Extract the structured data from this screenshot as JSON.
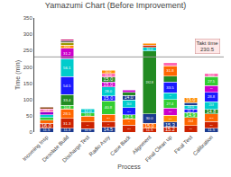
{
  "chart_data": {
    "type": "bar",
    "stacked": true,
    "title": "Yamazumi Chart (Before Improvement)",
    "xlabel": "Process",
    "ylabel": "Time (min)",
    "categories": [
      "Incoming Insp",
      "Desolate Build",
      "Discharge Test",
      "Radio Assy",
      "Case Back",
      "Alignment",
      "Final Clean up",
      "Final Test",
      "Calibration"
    ],
    "series": [
      {
        "values": [
          11.5,
          11.3,
          11.0,
          14.5,
          21.5,
          11.5,
          15.25,
          20.5,
          11.5
        ],
        "colors": [
          "#1a3a8f",
          "#1a3a8f",
          "#1a3a8f",
          "#1a3a8f",
          "#cc2200",
          "#cc2200",
          "#cc2200",
          "#cc2200",
          "#1a3a8f"
        ],
        "value_labels": [
          "11.5",
          "11.3",
          "11.0",
          "14.5",
          "21.5",
          "11.5",
          "15.2",
          "20.5",
          "11.5"
        ]
      },
      {
        "values": [
          15.99,
          31.3,
          20.0,
          18.5,
          18.5,
          15.0,
          15.33,
          24.42,
          20.82
        ],
        "colors": [
          "#cc2200",
          "#cc2200",
          "#cc2200",
          "#cc2200",
          "#ff6600",
          "#ff6600",
          "#1a3a8f",
          "#ff6600",
          "#cc2200"
        ],
        "value_labels": [
          "16.0",
          "31.3",
          "20.0",
          "18.5",
          "18.5",
          "15.0",
          "15.3",
          "24.4",
          "20.8"
        ]
      },
      {
        "values": [
          9.5,
          28.5,
          18.0,
          22.0,
          12.5,
          30.0,
          21.25,
          14.86,
          22.82
        ],
        "colors": [
          "#ff6600",
          "#ff6600",
          "#ff6600",
          "#ff6600",
          "#32cd32",
          "#1a3a8f",
          "#ff8c00",
          "#32cd32",
          "#ff6600"
        ],
        "value_labels": [
          null,
          "28.5",
          "18.0",
          "22.0",
          "12.5",
          "30.0",
          "21.2",
          "14.9",
          "22.8"
        ]
      },
      {
        "values": [
          7.5,
          10.8,
          10.0,
          40.75,
          22.0,
          192.8,
          21.23,
          11.66,
          14.81
        ],
        "colors": [
          "#32cd32",
          "#32cd32",
          "#32cd32",
          "#32cd32",
          "#1a1aff",
          "#228b22",
          "#cc00cc",
          "#1a1aff",
          "#228b22"
        ],
        "value_labels": [
          null,
          "10.8",
          "10.0",
          "40.8",
          "22.0",
          "192.8",
          "21.2",
          "11.7",
          "14.8"
        ]
      },
      {
        "values": [
          8.0,
          33.4,
          12.0,
          15.0,
          24.0,
          10.0,
          27.41,
          10.5,
          23.75
        ],
        "colors": [
          "#00cccc",
          "#228b22",
          "#00cccc",
          "#1a1aff",
          "#00cccc",
          "#00cccc",
          "#32cd32",
          "#00cccc",
          "#00cccc"
        ],
        "value_labels": [
          null,
          "33.4",
          "12.0",
          "15.0",
          "24.0",
          "10.0",
          "27.4",
          "10.5",
          "23.8"
        ]
      },
      {
        "values": [
          9.0,
          54.5,
          null,
          28.0,
          14.0,
          8.0,
          19.5,
          9.0,
          28.75
        ],
        "colors": [
          "#9400d3",
          "#1a1aff",
          null,
          "#00cccc",
          "#1a3a8f",
          "#cc2200",
          "#00cccc",
          "#1a3a8f",
          "#1a1aff"
        ],
        "value_labels": [
          null,
          "54.5",
          null,
          "28.0",
          "14.0",
          null,
          "19.5",
          null,
          "28.8"
        ]
      },
      {
        "values": [
          10.0,
          56.1,
          null,
          15.0,
          9.0,
          5.0,
          33.5,
          15.0,
          19.82
        ],
        "colors": [
          "#ff69b4",
          "#00cccc",
          null,
          "#cc00cc",
          "#228b22",
          "#ff8c00",
          "#1a1aff",
          "#ff8c00",
          "#cc00cc"
        ],
        "value_labels": [
          "10.0",
          "56.1",
          null,
          "15.0",
          null,
          null,
          "33.5",
          "15.0",
          "19.8"
        ]
      },
      {
        "values": [
          5.0,
          31.2,
          null,
          15.0,
          8.0,
          null,
          18.3,
          null,
          27.5
        ],
        "colors": [
          "#8b4513",
          "#cc00cc",
          null,
          "#228b22",
          "#cc00cc",
          null,
          "#228b22",
          null,
          "#32cd32"
        ],
        "value_labels": [
          null,
          "31.2",
          null,
          "15.0",
          null,
          null,
          "18.3",
          null,
          "27.5"
        ]
      },
      {
        "values": [
          null,
          10.0,
          null,
          11.0,
          null,
          null,
          31.83,
          null,
          10.0
        ],
        "colors": [
          null,
          "#ff8c00",
          null,
          "#ff69b4",
          null,
          null,
          "#ff6600",
          null,
          "#ff69b4"
        ],
        "value_labels": [
          null,
          "10.0",
          null,
          "11.0",
          null,
          null,
          "31.8",
          null,
          "10.0"
        ]
      },
      {
        "values": [
          null,
          8.0,
          null,
          10.0,
          null,
          null,
          9.0,
          null,
          null
        ],
        "colors": [
          null,
          "#999900",
          null,
          "#ff8c00",
          null,
          null,
          "#ff69b4",
          null,
          null
        ],
        "value_labels": [
          null,
          null,
          null,
          "10.0",
          null,
          null,
          null,
          null,
          null
        ]
      },
      {
        "values": [
          null,
          5.0,
          null,
          null,
          null,
          null,
          null,
          null,
          null
        ],
        "colors": [
          null,
          "#555555",
          null,
          null,
          null,
          null,
          null,
          null,
          null
        ],
        "value_labels": [
          null,
          null,
          null,
          null,
          null,
          null,
          null,
          null,
          null
        ]
      },
      {
        "values": [
          null,
          4.0,
          null,
          null,
          null,
          null,
          null,
          null,
          null
        ],
        "colors": [
          null,
          "#cc0066",
          null,
          null,
          null,
          null,
          null,
          null,
          null
        ],
        "value_labels": [
          null,
          null,
          null,
          null,
          null,
          null,
          null,
          null,
          null
        ]
      }
    ],
    "data_labels": true,
    "ylim": [
      0,
      350
    ],
    "yticks": [
      0,
      50,
      100,
      150,
      200,
      250,
      300,
      350
    ],
    "grid": false,
    "lines": [
      {
        "y": 230.5,
        "color": "#999999"
      }
    ],
    "annotations": [
      {
        "text": "Takt time\n230.5",
        "y": 230.5
      }
    ]
  }
}
